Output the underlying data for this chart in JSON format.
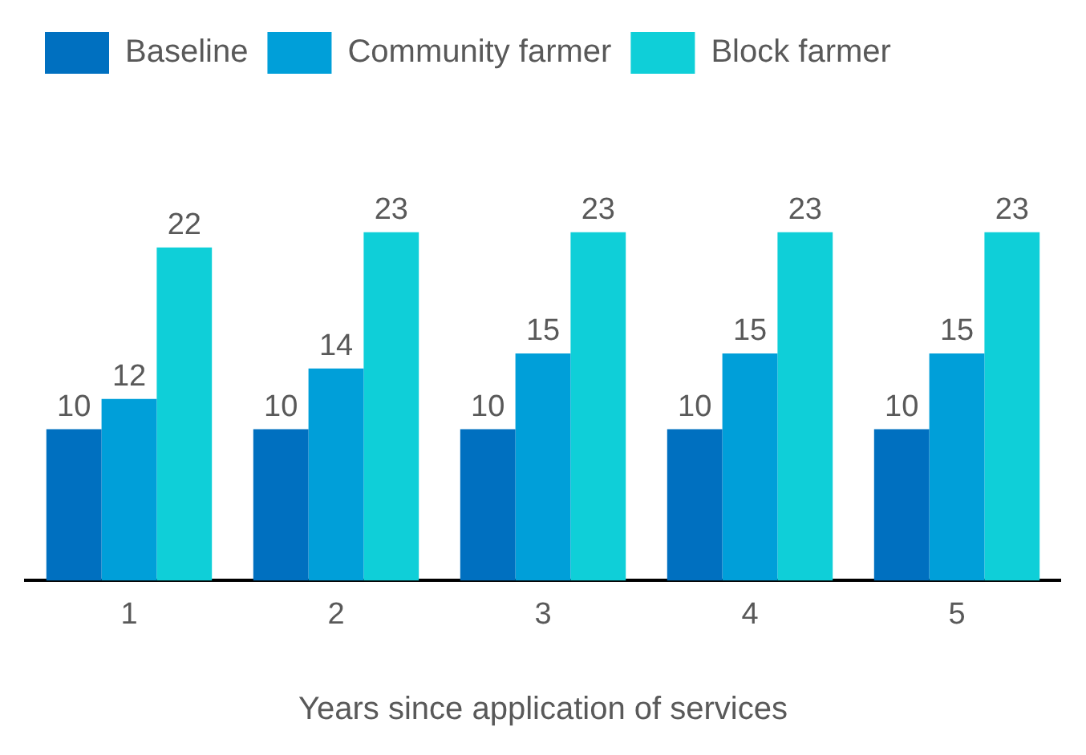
{
  "chart_data": {
    "type": "bar",
    "xlabel": "Years since application of services",
    "categories": [
      "1",
      "2",
      "3",
      "4",
      "5"
    ],
    "series": [
      {
        "name": "Baseline",
        "color": "#0070c0",
        "values": [
          10,
          10,
          10,
          10,
          10
        ]
      },
      {
        "name": "Community farmer",
        "color": "#009fd9",
        "values": [
          12,
          14,
          15,
          15,
          15
        ]
      },
      {
        "name": "Block farmer",
        "color": "#0fcfd8",
        "values": [
          22,
          23,
          23,
          23,
          23
        ]
      }
    ],
    "data_labels": true,
    "legend": "top",
    "grid": false
  }
}
